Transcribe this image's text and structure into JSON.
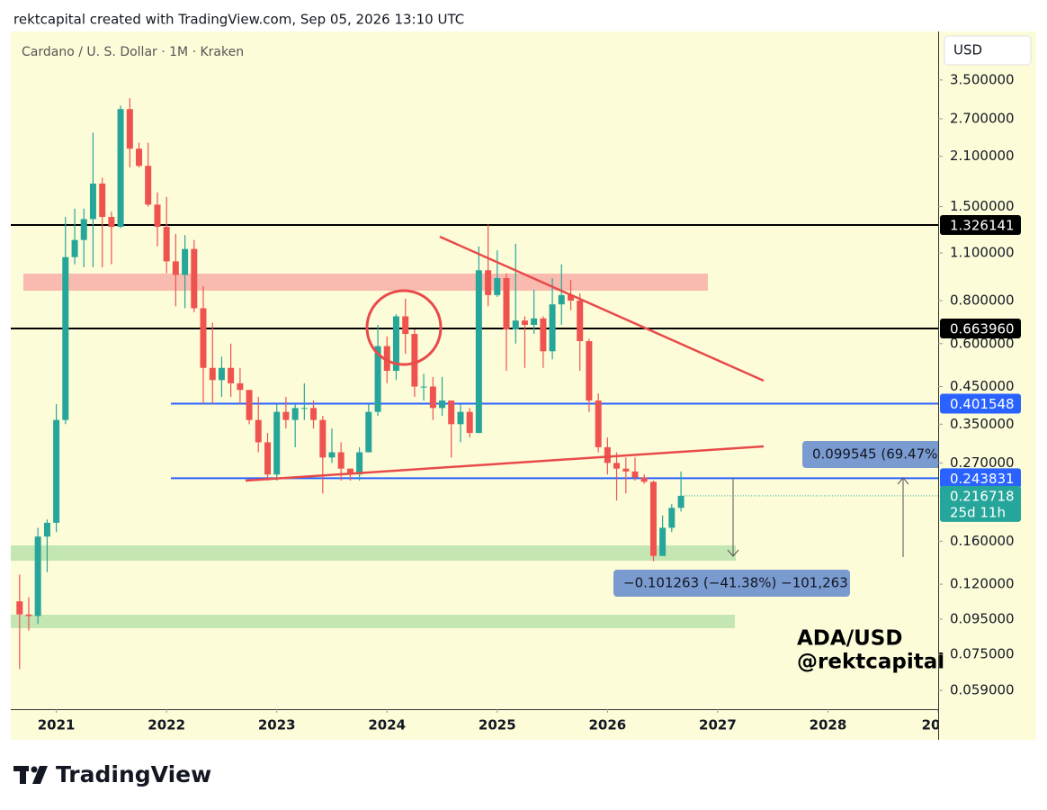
{
  "header": "rektcapital created with TradingView.com, Sep 05, 2026 13:10 UTC",
  "brand": "TradingView",
  "chart_data": {
    "type": "candlestick",
    "title": "Cardano / U. S. Dollar · 1M · Kraken",
    "currency": "USD",
    "watermark": [
      "ADA/USD",
      "@rektcapital"
    ],
    "yscale": "log",
    "up_color": "#26a69a",
    "down_color": "#ef5350",
    "xlim": [
      2020.587,
      2029.0
    ],
    "xticks": [
      2021,
      2022,
      2023,
      2024,
      2025,
      2026,
      2027,
      2028,
      {
        "value": 2029,
        "label": "20"
      }
    ],
    "ylim": [
      0.052,
      4.84
    ],
    "yticks": [
      {
        "value": 3.5,
        "label": "3.500000"
      },
      {
        "value": 2.7,
        "label": "2.700000"
      },
      {
        "value": 2.1,
        "label": "2.100000"
      },
      {
        "value": 1.5,
        "label": "1.500000"
      },
      {
        "value": 1.1,
        "label": "1.100000"
      },
      {
        "value": 0.8,
        "label": "0.800000"
      },
      {
        "value": 0.6,
        "label": "0.600000"
      },
      {
        "value": 0.45,
        "label": "0.450000"
      },
      {
        "value": 0.35,
        "label": "0.350000"
      },
      {
        "value": 0.27,
        "label": "0.270000"
      },
      {
        "value": 0.16,
        "label": "0.160000"
      },
      {
        "value": 0.12,
        "label": "0.120000"
      },
      {
        "value": 0.095,
        "label": "0.095000"
      },
      {
        "value": 0.075,
        "label": "0.075000"
      },
      {
        "value": 0.059,
        "label": "0.059000"
      }
    ],
    "x": [
      2020.667,
      2020.75,
      2020.833,
      2020.917,
      2021,
      2021.083,
      2021.167,
      2021.25,
      2021.333,
      2021.417,
      2021.5,
      2021.583,
      2021.667,
      2021.75,
      2021.833,
      2021.917,
      2022,
      2022.083,
      2022.167,
      2022.25,
      2022.333,
      2022.417,
      2022.5,
      2022.583,
      2022.667,
      2022.75,
      2022.833,
      2022.917,
      2023,
      2023.083,
      2023.167,
      2023.25,
      2023.333,
      2023.417,
      2023.5,
      2023.583,
      2023.667,
      2023.75,
      2023.833,
      2023.917,
      2024,
      2024.083,
      2024.167,
      2024.25,
      2024.333,
      2024.417,
      2024.5,
      2024.583,
      2024.667,
      2024.75,
      2024.833,
      2024.917,
      2025,
      2025.083,
      2025.167,
      2025.25,
      2025.333,
      2025.417,
      2025.5,
      2025.583,
      2025.667,
      2025.75,
      2025.833,
      2025.917,
      2026,
      2026.083,
      2026.167,
      2026.25,
      2026.333,
      2026.417,
      2026.5,
      2026.583,
      2026.667
    ],
    "ohlc": {
      "open": [
        0.107,
        0.098,
        0.097,
        0.165,
        0.181,
        0.36,
        1.07,
        1.2,
        1.38,
        1.75,
        1.4,
        1.31,
        2.88,
        2.21,
        1.97,
        1.52,
        1.31,
        1.04,
        0.95,
        1.13,
        0.76,
        0.51,
        0.47,
        0.51,
        0.46,
        0.44,
        0.36,
        0.31,
        0.25,
        0.38,
        0.36,
        0.39,
        0.39,
        0.36,
        0.28,
        0.29,
        0.26,
        0.25,
        0.29,
        0.38,
        0.59,
        0.5,
        0.72,
        0.64,
        0.45,
        0.45,
        0.39,
        0.41,
        0.35,
        0.38,
        0.33,
        0.98,
        0.83,
        0.93,
        0.66,
        0.7,
        0.68,
        0.71,
        0.57,
        0.78,
        0.83,
        0.8,
        0.61,
        0.41,
        0.3,
        0.27,
        0.26,
        0.255,
        0.245,
        0.238,
        0.145,
        0.175,
        0.2
      ],
      "high": [
        0.128,
        0.11,
        0.175,
        0.185,
        0.4,
        1.4,
        1.48,
        1.48,
        2.46,
        1.82,
        1.45,
        2.95,
        3.1,
        2.3,
        2.3,
        1.65,
        1.6,
        1.25,
        1.24,
        1.2,
        0.88,
        0.69,
        0.55,
        0.6,
        0.51,
        0.44,
        0.42,
        0.33,
        0.4,
        0.42,
        0.4,
        0.46,
        0.41,
        0.37,
        0.34,
        0.31,
        0.26,
        0.3,
        0.4,
        0.68,
        0.63,
        0.73,
        0.81,
        0.66,
        0.49,
        0.48,
        0.48,
        0.41,
        0.4,
        0.39,
        1.15,
        1.33,
        1.12,
        0.96,
        1.17,
        0.72,
        0.86,
        0.72,
        0.93,
        1.02,
        0.92,
        0.84,
        0.62,
        0.43,
        0.32,
        0.29,
        0.28,
        0.28,
        0.25,
        0.24,
        0.19,
        0.205,
        0.255
      ],
      "low": [
        0.068,
        0.088,
        0.092,
        0.13,
        0.17,
        0.35,
        1.02,
        1.0,
        1.0,
        1.0,
        1.02,
        1.3,
        1.95,
        1.95,
        1.5,
        1.15,
        0.96,
        0.77,
        0.76,
        0.74,
        0.4,
        0.4,
        0.42,
        0.42,
        0.4,
        0.35,
        0.29,
        0.24,
        0.24,
        0.34,
        0.3,
        0.36,
        0.34,
        0.22,
        0.27,
        0.24,
        0.24,
        0.24,
        0.29,
        0.37,
        0.46,
        0.47,
        0.56,
        0.42,
        0.41,
        0.36,
        0.37,
        0.28,
        0.31,
        0.32,
        0.33,
        0.77,
        0.82,
        0.5,
        0.6,
        0.51,
        0.64,
        0.51,
        0.54,
        0.68,
        0.75,
        0.5,
        0.38,
        0.29,
        0.25,
        0.21,
        0.22,
        0.24,
        0.235,
        0.14,
        0.145,
        0.17,
        0.195
      ],
      "close": [
        0.098,
        0.097,
        0.165,
        0.181,
        0.36,
        1.07,
        1.2,
        1.38,
        1.75,
        1.4,
        1.31,
        2.88,
        2.21,
        1.97,
        1.52,
        1.31,
        1.04,
        0.95,
        1.13,
        0.76,
        0.51,
        0.47,
        0.51,
        0.46,
        0.44,
        0.36,
        0.31,
        0.25,
        0.38,
        0.36,
        0.39,
        0.39,
        0.36,
        0.28,
        0.29,
        0.26,
        0.25,
        0.29,
        0.38,
        0.59,
        0.5,
        0.72,
        0.64,
        0.45,
        0.45,
        0.39,
        0.41,
        0.35,
        0.38,
        0.33,
        0.98,
        0.83,
        0.93,
        0.66,
        0.7,
        0.68,
        0.71,
        0.57,
        0.78,
        0.83,
        0.8,
        0.61,
        0.41,
        0.3,
        0.27,
        0.26,
        0.255,
        0.245,
        0.238,
        0.145,
        0.175,
        0.2,
        0.216718
      ]
    },
    "levels": [
      {
        "value": 1.326141,
        "color": "#000000"
      },
      {
        "value": 0.66396,
        "label": "0.663960",
        "color": "#000000"
      },
      {
        "value": 0.401548,
        "color": "#2962ff"
      },
      {
        "value": 0.243831,
        "color": "#2962ff"
      }
    ],
    "last_price": 0.216718,
    "countdown": "25d 11h",
    "measure_up": "0.099545 (69.47%",
    "measure_down": "−0.101263 (−41.38%) −101,263"
  }
}
